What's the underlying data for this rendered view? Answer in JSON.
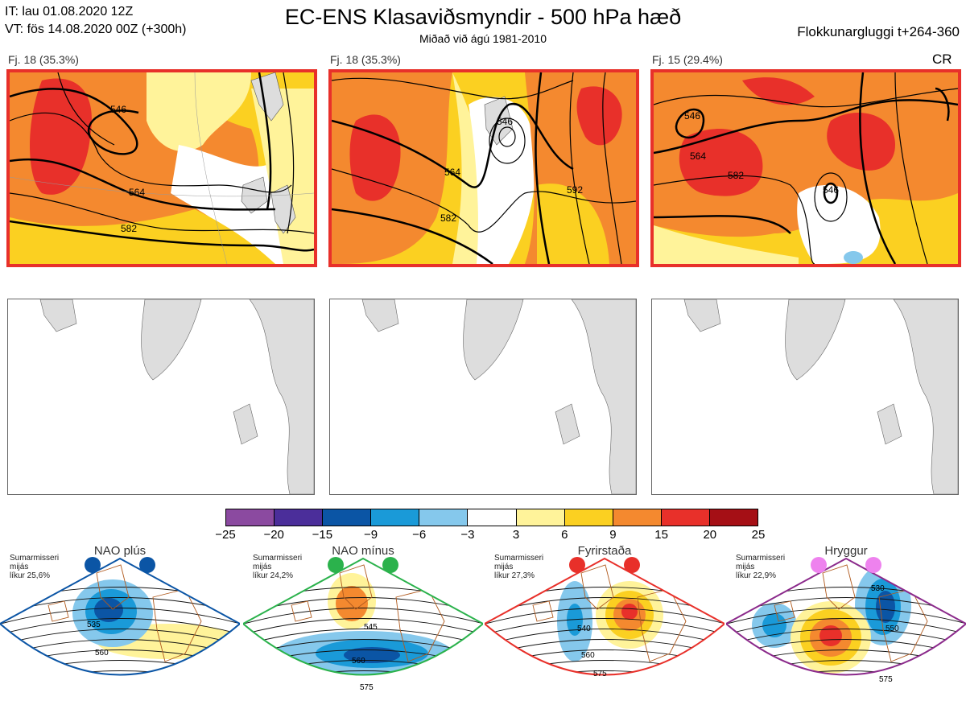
{
  "header": {
    "it_line": "IT: lau 01.08.2020 12Z",
    "vt_line": "VT: fös 14.08.2020 00Z  (+300h)",
    "title": "EC-ENS Klasaviðsmyndir - 500 hPa hæð",
    "subtitle": "Miðað við ágú 1981-2010",
    "window": "Flokkunargluggi t+264-360"
  },
  "panels": [
    {
      "label": "Fj. 18 (35.3%)",
      "contours": [
        "546",
        "564",
        "582"
      ]
    },
    {
      "label": "Fj. 18 (35.3%)",
      "contours": [
        "546",
        "564",
        "582",
        "592"
      ]
    },
    {
      "label": "Fj. 15 (29.4%)",
      "contours": [
        "546",
        "564",
        "582",
        "546"
      ],
      "tag": "CR"
    }
  ],
  "colorbar": {
    "ticks": [
      "−25",
      "−20",
      "−15",
      "−9",
      "−6",
      "−3",
      "3",
      "6",
      "9",
      "15",
      "20",
      "25"
    ],
    "colors": [
      "#8b4aa0",
      "#4b2e9a",
      "#0b55a5",
      "#1a9ad8",
      "#85c8ec",
      "#ffffff",
      "#fff39a",
      "#fbd021",
      "#f4892f",
      "#e8302a",
      "#a50f15"
    ]
  },
  "regimes": [
    {
      "name": "NAO plús",
      "note1": "Sumarmisseri",
      "note2": "mijás",
      "note3": "líkur 25,6%",
      "dot_color": "#0b55a5",
      "frame_color": "#0b55a5",
      "c1": "535",
      "c2": "560"
    },
    {
      "name": "NAO mínus",
      "note1": "Sumarmisseri",
      "note2": "mijás",
      "note3": "líkur 24,2%",
      "dot_color": "#2bb24c",
      "frame_color": "#2bb24c",
      "c1": "545",
      "c2": "560",
      "c3": "575"
    },
    {
      "name": "Fyrirstaða",
      "note1": "Sumarmisseri",
      "note2": "mijás",
      "note3": "líkur 27,3%",
      "dot_color": "#e8302a",
      "frame_color": "#e8302a",
      "c1": "540",
      "c2": "560",
      "c3": "575"
    },
    {
      "name": "Hryggur",
      "note1": "Sumarmisseri",
      "note2": "mijás",
      "note3": "líkur 22,9%",
      "dot_color": "#ee82ee",
      "frame_color": "#8b2a8b",
      "c1": "530",
      "c2": "550",
      "c3": "575"
    }
  ]
}
